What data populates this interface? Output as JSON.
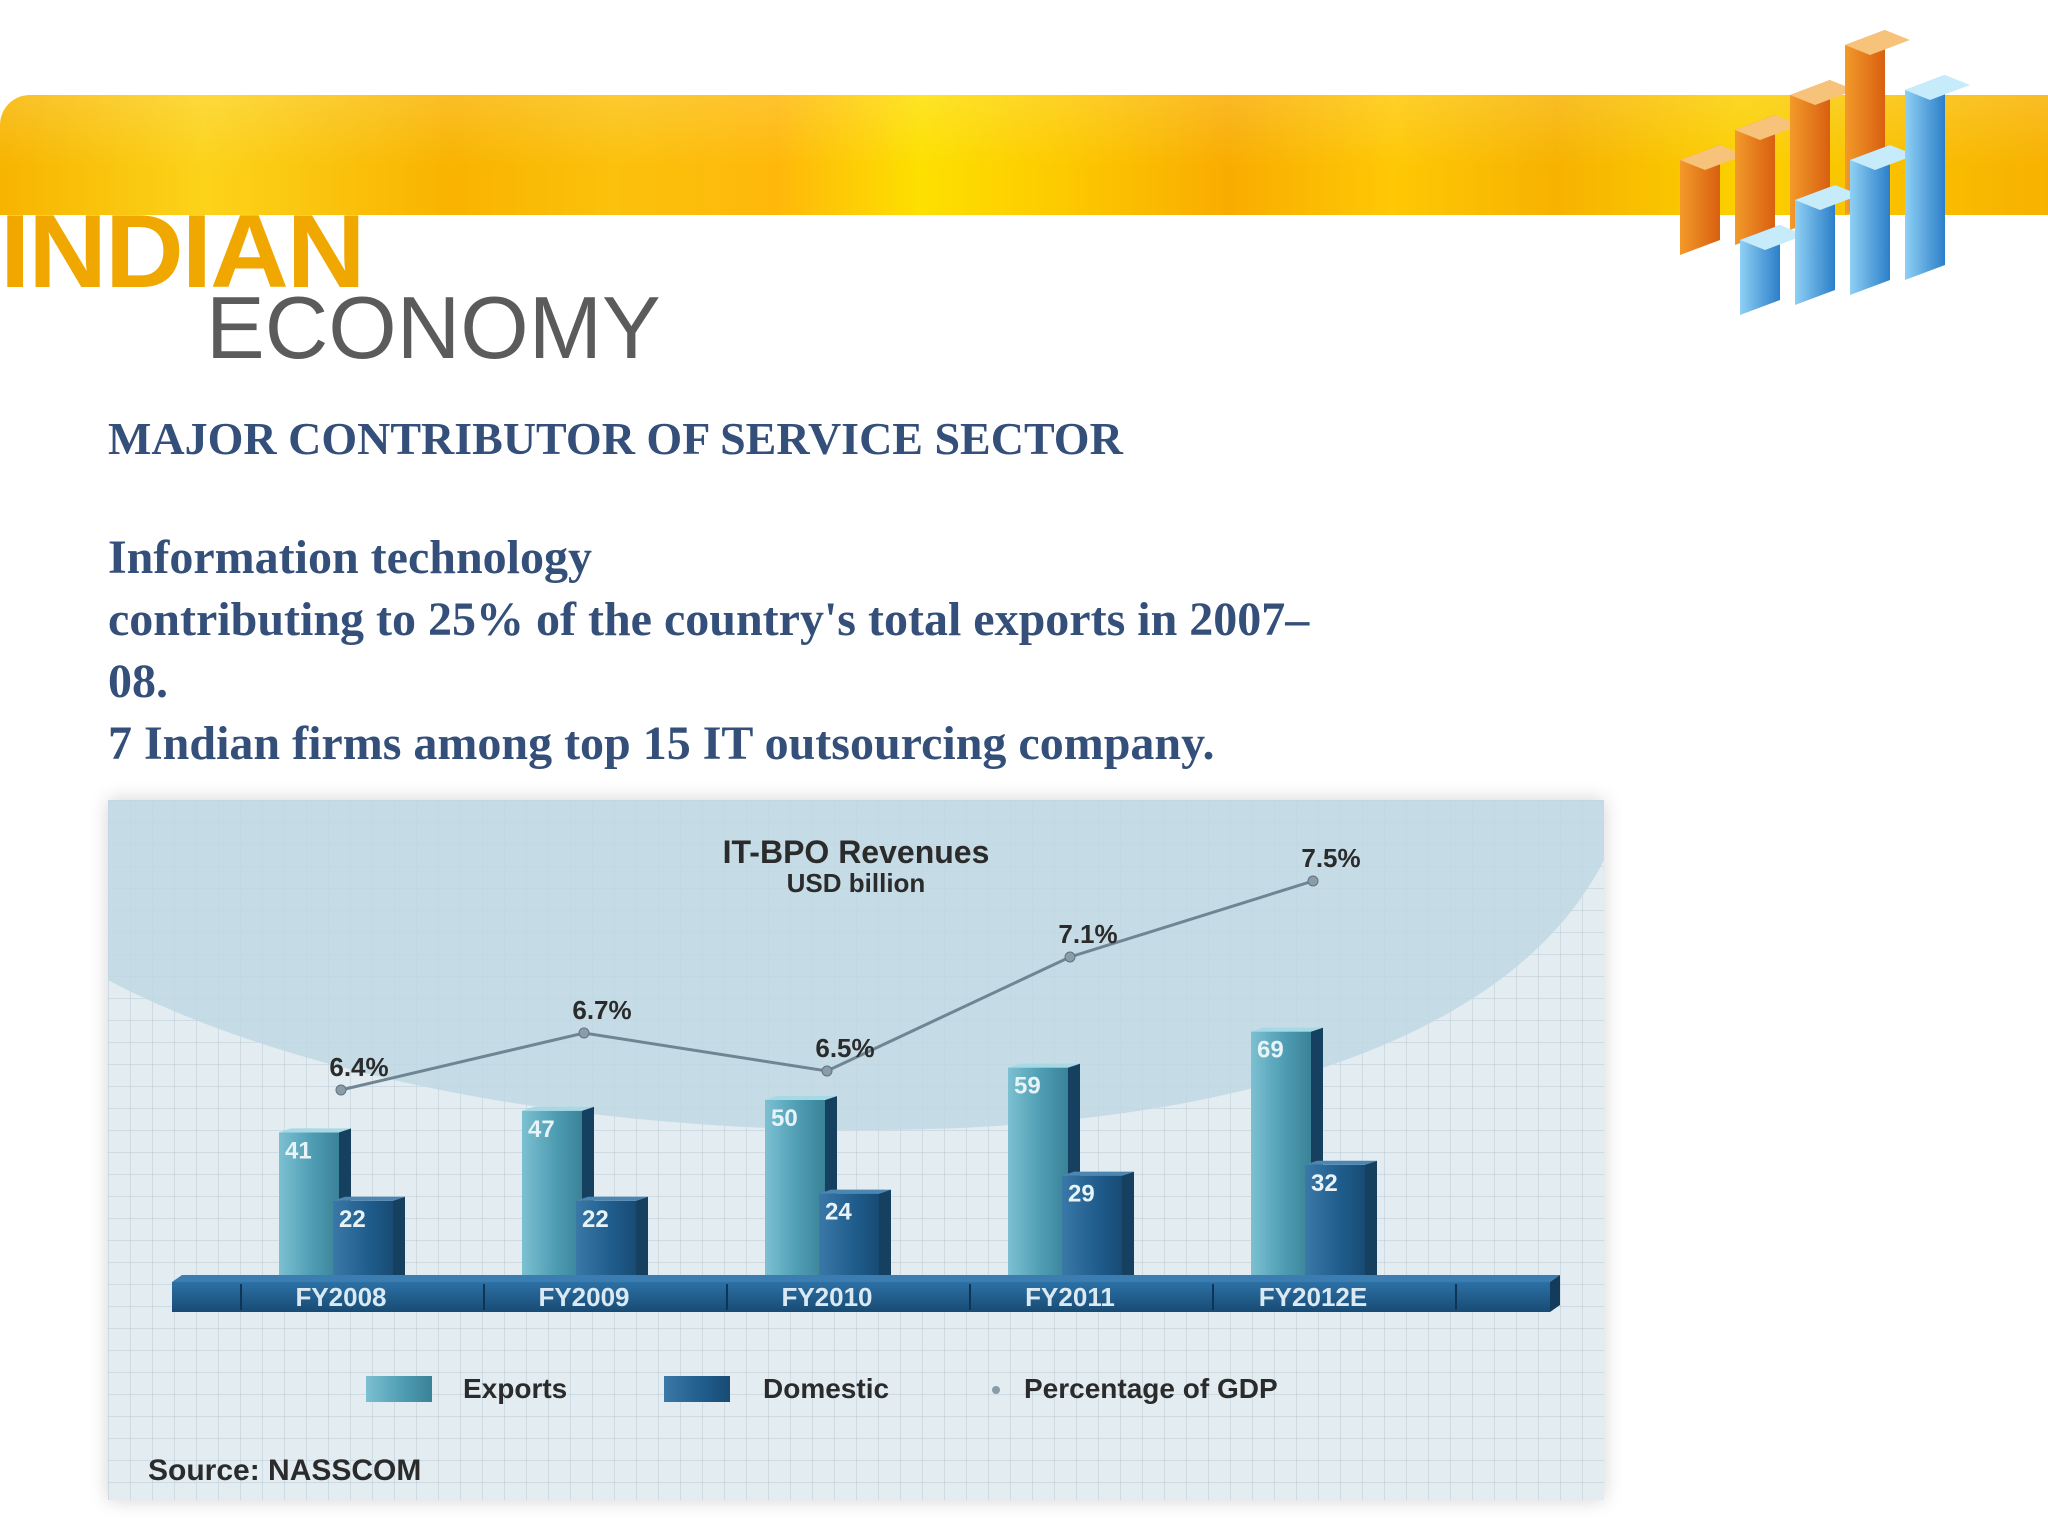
{
  "header": {
    "title_word_1": "INDIAN",
    "title_word_2": "ECONOMY",
    "logo_icon": "bar-chart-3d-icon"
  },
  "content": {
    "heading": "MAJOR CONTRIBUTOR OF SERVICE SECTOR",
    "lines": [
      "Information technology",
      "contributing to 25% of  the country's total exports in 2007–",
      "08.",
      "7 Indian firms among top 15 IT outsourcing company."
    ]
  },
  "colors": {
    "banner": "#f9b800",
    "heading_text": "#344f79",
    "exports_bar": "#4f9db3",
    "domestic_bar": "#1f5c8c",
    "gdp_line": "#7a8c98",
    "axis_band": "#205e8f"
  },
  "chart_data": {
    "type": "bar",
    "title": "IT-BPO Revenues",
    "subtitle": "USD billion",
    "categories": [
      "FY2008",
      "FY2009",
      "FY2010",
      "FY2011",
      "FY2012E"
    ],
    "series": [
      {
        "name": "Exports",
        "values": [
          41,
          47,
          50,
          59,
          69
        ]
      },
      {
        "name": "Domestic",
        "values": [
          22,
          22,
          24,
          29,
          32
        ]
      }
    ],
    "line_series": {
      "name": "Percentage of GDP",
      "values": [
        6.4,
        6.7,
        6.5,
        7.1,
        7.5
      ],
      "labels": [
        "6.4%",
        "6.7%",
        "6.5%",
        "7.1%",
        "7.5%"
      ]
    },
    "legend_position": "bottom",
    "grid": true,
    "source": "Source: NASSCOM"
  }
}
